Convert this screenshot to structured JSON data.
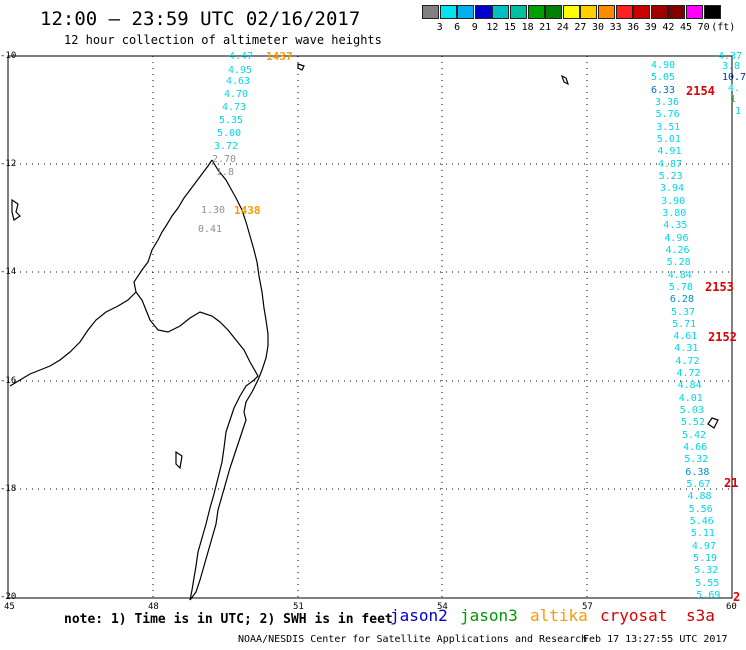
{
  "title": "12:00 – 23:59 UTC 02/16/2017",
  "subtitle": "12 hour collection of altimeter wave heights",
  "legend": {
    "unit": "(ft)",
    "ticks": [
      "3",
      "6",
      "9",
      "12",
      "15",
      "18",
      "21",
      "24",
      "27",
      "30",
      "33",
      "36",
      "39",
      "42",
      "45",
      "70"
    ],
    "colors": [
      "#808080",
      "#00e5ee",
      "#00b0f0",
      "#0000cd",
      "#00c0c0",
      "#00c0a0",
      "#00a000",
      "#008000",
      "#ffff00",
      "#ffd000",
      "#ff8c00",
      "#ff2020",
      "#cc0000",
      "#a00000",
      "#800000",
      "#ff00ff",
      "#000000"
    ]
  },
  "axes": {
    "lat_labels": [
      "-10",
      "-12",
      "-14",
      "-16",
      "-18",
      "-20"
    ],
    "lon_labels": [
      "45",
      "48",
      "51",
      "54",
      "57",
      "60"
    ]
  },
  "passes": {
    "p1437": {
      "time": "1437",
      "color": "#ff9900"
    },
    "p1438": {
      "time": "1438",
      "color": "#ff9900"
    },
    "p2154": {
      "time": "2154",
      "color": "#dd0000"
    },
    "p2153": {
      "time": "2153",
      "color": "#dd0000"
    },
    "p2152": {
      "time": "2152",
      "color": "#dd0000"
    },
    "p21a": {
      "time": "21",
      "color": "#dd0000"
    },
    "p2b": {
      "time": "2",
      "color": "#dd0000"
    }
  },
  "track_west_upper": [
    "4.47",
    "4.95",
    "4.63",
    "4.70",
    "4.73",
    "5.35",
    "5.00",
    "3.72"
  ],
  "track_west_lower": [
    "2.70",
    "1.8",
    "1.30",
    "0.41"
  ],
  "track_east_main": [
    "4.90",
    "5.05",
    "6.33",
    "3.36",
    "5.76",
    "3.51",
    "5.01",
    "4.91",
    "4.87",
    "5.23",
    "3.94",
    "3.90",
    "3.80",
    "4.35",
    "4.96",
    "4.26",
    "5.28",
    "4.84",
    "5.78",
    "6.28",
    "5.37",
    "5.71",
    "4.61",
    "4.31",
    "4.72",
    "4.72",
    "4.84",
    "4.01",
    "5.03",
    "5.52",
    "5.42",
    "4.66",
    "5.32",
    "6.38",
    "5.67",
    "4.88",
    "5.56",
    "5.46",
    "5.11",
    "4.97",
    "5.19",
    "5.32",
    "5.55",
    "5.69"
  ],
  "track_east_edge": [
    "4.37",
    "3.8",
    "10.7",
    "4.",
    "1",
    "1"
  ],
  "note": "note: 1) Time is in UTC; 2) SWH is in feet",
  "satellites": [
    {
      "name": "jason2",
      "color": "#0000cc"
    },
    {
      "name": "jason3",
      "color": "#009900"
    },
    {
      "name": "altika",
      "color": "#ff9900"
    },
    {
      "name": "cryosat",
      "color": "#dd0000"
    },
    {
      "name": "s3a",
      "color": "#cc0000"
    }
  ],
  "credit": "NOAA/NESDIS Center for Satellite Applications and Research",
  "timestamp": "Feb 17 13:27:55 UTC 2017"
}
